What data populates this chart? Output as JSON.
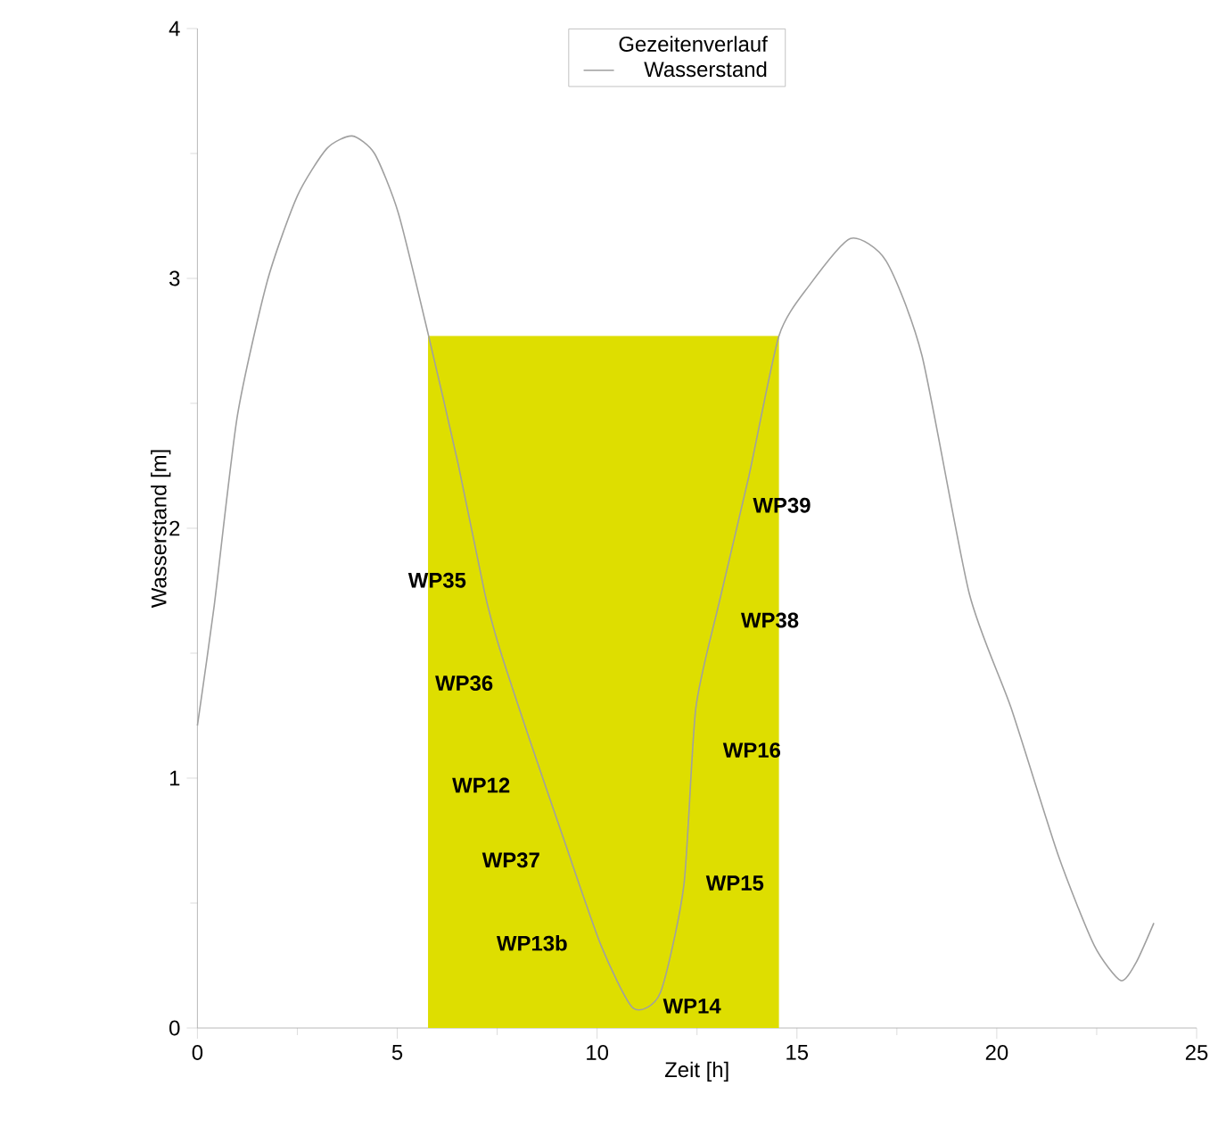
{
  "chart_data": {
    "type": "line",
    "xlabel": "Zeit [h]",
    "ylabel": "Wasserstand [m]",
    "legend_title": "Gezeitenverlauf",
    "legend": "top",
    "grid": false,
    "marker": "none",
    "xlim": [
      0,
      25
    ],
    "ylim": [
      0,
      4
    ],
    "xticks": [
      0,
      5,
      10,
      15,
      20,
      25
    ],
    "yticks": [
      0,
      1,
      2,
      3,
      4
    ],
    "series": [
      {
        "type": "area",
        "color": "#dede00",
        "x": [
          5.77,
          14.55
        ],
        "values": [
          2.77,
          2.77
        ]
      },
      {
        "name": "Wasserstand",
        "color": "#a0a0a0",
        "x": [
          0,
          0.42,
          1.0,
          1.75,
          2.5,
          3.24,
          3.87,
          4.43,
          5.03,
          5.77,
          6.52,
          7.19,
          7.56,
          8.3,
          9.2,
          10.1,
          10.9,
          11.58,
          12.17,
          12.47,
          13.05,
          13.8,
          14.55,
          15.3,
          16.34,
          17.23,
          18.13,
          19.31,
          20.36,
          21.54,
          22.44,
          23.1,
          23.48,
          23.93
        ],
        "values": [
          1.21,
          1.69,
          2.45,
          2.99,
          3.33,
          3.52,
          3.57,
          3.5,
          3.26,
          2.78,
          2.26,
          1.74,
          1.52,
          1.16,
          0.74,
          0.33,
          0.08,
          0.14,
          0.57,
          1.28,
          1.7,
          2.21,
          2.77,
          2.97,
          3.16,
          3.07,
          2.69,
          1.74,
          1.28,
          0.69,
          0.33,
          0.19,
          0.26,
          0.42
        ]
      }
    ],
    "annotations": [
      "WP35",
      "WP36",
      "WP12",
      "WP37",
      "WP13b",
      "WP14",
      "WP15",
      "WP16",
      "WP38",
      "WP39"
    ]
  }
}
